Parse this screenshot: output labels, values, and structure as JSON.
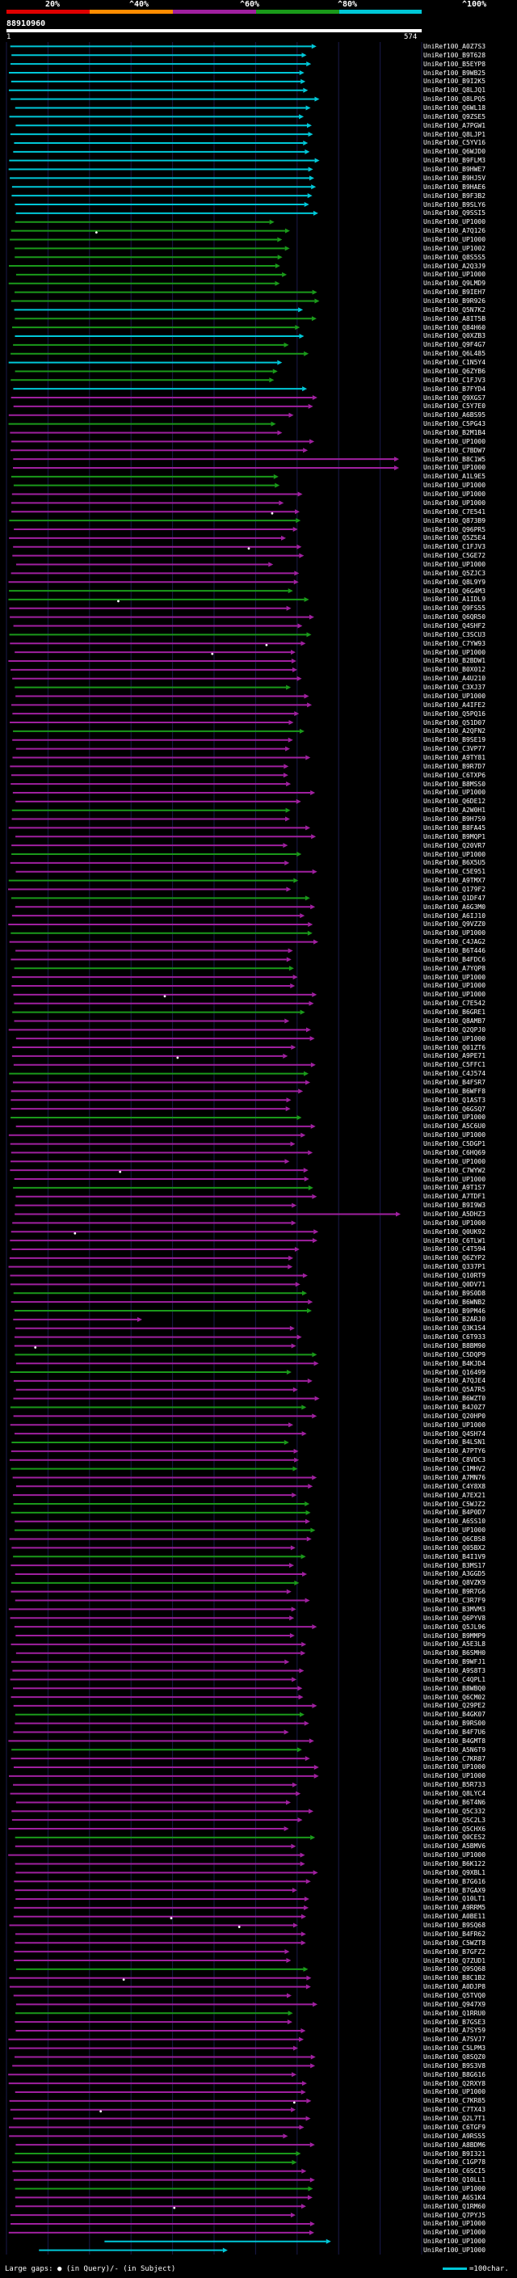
{
  "legend": {
    "labels": [
      "20%",
      "^40%",
      "^60%",
      "^80%",
      "^100%"
    ],
    "colors": [
      "#e00000",
      "#ff8c00",
      "#a020a0",
      "#1a9a1a",
      "#00c8d8"
    ]
  },
  "query": {
    "title": "88910960",
    "start": "1",
    "end": "574"
  },
  "hits_prefix": "UniRef100_",
  "hit_ids": [
    "A0Z7S3",
    "B9T628",
    "B5EYP8",
    "B9WB25",
    "B9I2K5",
    "Q8LJQ1",
    "Q8LPQ5",
    "Q6WL18",
    "Q9ZSE5",
    "A7PGW1",
    "Q8LJP1",
    "C5YV16",
    "Q6WJD0",
    "B9FLM3",
    "B9HWE7",
    "B9HJ5V",
    "B9HAE6",
    "B9F3B2",
    "B9SLY6",
    "Q9SSI5",
    "UP1000",
    "A7Q126",
    "UP1000",
    "UP1002",
    "Q8S5S5",
    "A2Q3J9",
    "UP1000",
    "Q9LMD9",
    "B9IEH7",
    "B9R926",
    "Q5N7K2",
    "A8IT5B",
    "Q84H60",
    "Q0XZB3",
    "Q9F4G7",
    "Q6L485",
    "C1N5Y4",
    "Q6ZYB6",
    "C1FJV3",
    "B7FYD4",
    "Q9XGS7",
    "C5Y7E0",
    "A6BS95",
    "C5PG43",
    "B2M1B4",
    "UP1000",
    "C7BDW7",
    "B8C1W5",
    "UP1000",
    "A1L9E5",
    "UP1000",
    "UP1000",
    "UP1000",
    "C7E541",
    "Q873B9",
    "Q96PR5",
    "Q5Z5E4",
    "C1FJV3",
    "C5GE72",
    "UP1000",
    "Q5ZJC3",
    "Q8L9Y9",
    "Q6G4M3",
    "A1IDL9",
    "Q9FS55",
    "Q6QR50",
    "Q4SHF2",
    "C3SCU3",
    "C7YW93",
    "UP1000",
    "B2BDW1",
    "B0X012",
    "A4U210",
    "C3XJ37",
    "UP1000",
    "A4IFE2",
    "Q5PQ16",
    "Q51D07",
    "A2QFN2",
    "B9SE19",
    "C3VP77",
    "A9TY81",
    "B9R7D7",
    "C6TXP6",
    "B8MSS0",
    "UP1000",
    "Q6DE12",
    "A2W0H1",
    "B9H7S9",
    "B8FA45",
    "B9MQP1",
    "Q20VR7",
    "UP1000",
    "B6X5U5",
    "C5E951",
    "A9TMX7",
    "Q179F2",
    "Q1DF47",
    "A6G3M0",
    "A6IJ10",
    "Q9VZZ0",
    "UP1000",
    "C4JAG2",
    "B6T446",
    "B4FDC6",
    "A7YQP8",
    "UP1000",
    "UP1000",
    "UP1000",
    "C7E542",
    "B6GRE1",
    "Q8AMB7",
    "Q2QPJ0",
    "UP1000",
    "Q01ZT6",
    "A9PE71",
    "C5FFC1",
    "C4J574",
    "B4FSR7",
    "B6WFF8",
    "Q1AST3",
    "Q6GSQ7",
    "UP1000",
    "A5C6U0",
    "UP1000",
    "C5DGP1",
    "C6HQ69",
    "UP1000",
    "C7WYW2",
    "UP1000",
    "A9T1S7",
    "A7TDF1",
    "B9I9W3",
    "A5DHZ3",
    "UP1000",
    "Q0UK92",
    "C6TLW1",
    "C4T594",
    "Q6ZYP2",
    "Q337P1",
    "Q10RT9",
    "Q0DV71",
    "B9S0D8",
    "B6WNB2",
    "B9PM46",
    "B2ARJ0",
    "Q3K1S4",
    "C6T933",
    "B8BM90",
    "C5DQP9",
    "B4KJD4",
    "Q16499",
    "A7QJE4",
    "Q5A7R5",
    "B6WZT0",
    "B4J0Z7",
    "Q20HP0",
    "UP1000",
    "Q4SH74",
    "B4LSN1",
    "A7PTY6",
    "C8VDC3",
    "C1MHV2",
    "A7MN76",
    "C4Y8X8",
    "A7EX21",
    "C5WJZ2",
    "B4P0D7",
    "A6SS10",
    "UP1000",
    "Q6CBS8",
    "Q05BX2",
    "B4I1V9",
    "B3MS17",
    "A3GGD5",
    "Q8VZK9",
    "B9R7G6",
    "C3R7F9",
    "B3MVM3",
    "Q6PYV8",
    "Q5JL96",
    "B9MMP9",
    "A5E3L8",
    "B6SMH0",
    "B9WFJ1",
    "A9S8T3",
    "C4QPL1",
    "B8WBQ0",
    "Q6CM02",
    "Q29PE2",
    "B4GK07",
    "B9RS00",
    "B4F7U6",
    "B4GMT8",
    "A5N6T9",
    "C7KR87",
    "UP1000",
    "UP1000",
    "B5R733",
    "Q8LYC4",
    "B6T4N6",
    "Q5C332",
    "Q5C2L3",
    "Q5CHX6",
    "Q0CES2",
    "A5BMV6",
    "UP1000",
    "B6K122",
    "Q9XBL1",
    "B7G616",
    "B7GAX9",
    "Q10LT1",
    "A9RRM5",
    "A0BE11",
    "B9SQ68",
    "B4FR62",
    "C5WZT8",
    "B7GFZ2",
    "Q7ZUD1",
    "Q9SQ68",
    "B8C1B2",
    "A0DJP8",
    "Q5TVQ0",
    "Q947X9",
    "Q1RRU0",
    "B7GSE3",
    "A7SY59",
    "A7SVJ7",
    "C5LPM3",
    "Q8SQZ0",
    "B9S3V8",
    "B8G616",
    "Q2RXY8",
    "UP1000",
    "C7KR85",
    "C7TX43",
    "Q2L7T1",
    "C6TGF9",
    "A9RS55",
    "A8BDM6",
    "B9I321",
    "C1GP78",
    "C6SCI5",
    "Q10LL1",
    "UP1000",
    "A6S1K4",
    "Q1RM60",
    "Q7PYJ5",
    "UP1000",
    "UP1000",
    "UP1000",
    "UP1000"
  ],
  "footer": {
    "text": "Large gaps: ● (in Query)/- (in Subject)",
    "scale": "=100char."
  }
}
